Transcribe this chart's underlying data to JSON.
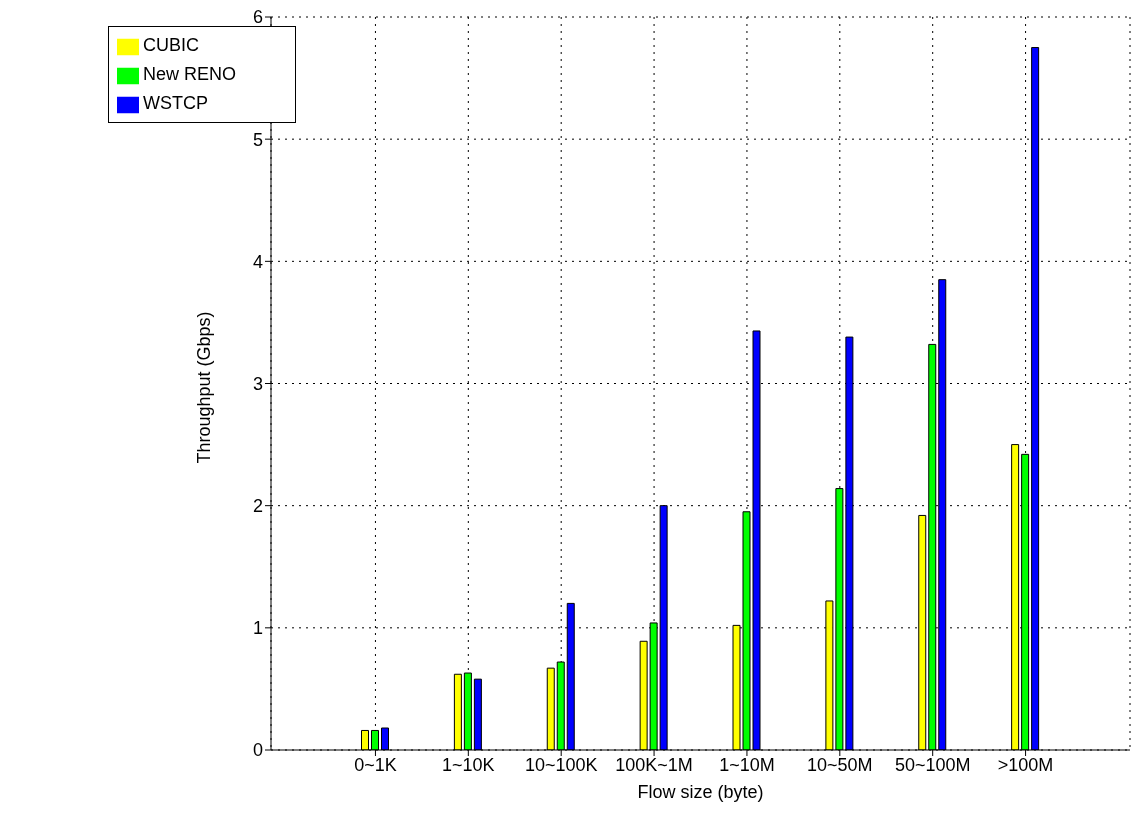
{
  "chart_data": {
    "type": "bar",
    "xlabel": "Flow size (byte)",
    "ylabel": "Throughput (Gbps)",
    "categories": [
      "0~1K",
      "1~10K",
      "10~100K",
      "100K~1M",
      "1~10M",
      "10~50M",
      "50~100M",
      ">100M"
    ],
    "series": [
      {
        "name": "CUBIC",
        "color": "#ffff00",
        "values": [
          0.16,
          0.62,
          0.67,
          0.89,
          1.02,
          1.22,
          1.92,
          2.5
        ]
      },
      {
        "name": "New RENO",
        "color": "#00ff00",
        "values": [
          0.16,
          0.63,
          0.72,
          1.04,
          1.95,
          2.14,
          3.32,
          2.42
        ]
      },
      {
        "name": "WSTCP",
        "color": "#0000ff",
        "values": [
          0.18,
          0.58,
          1.2,
          2.0,
          3.43,
          3.38,
          3.85,
          5.75
        ]
      }
    ],
    "ylim": [
      0,
      6
    ],
    "yticks": [
      0,
      1,
      2,
      3,
      4,
      5,
      6
    ],
    "grid": true,
    "legend": "top left"
  }
}
